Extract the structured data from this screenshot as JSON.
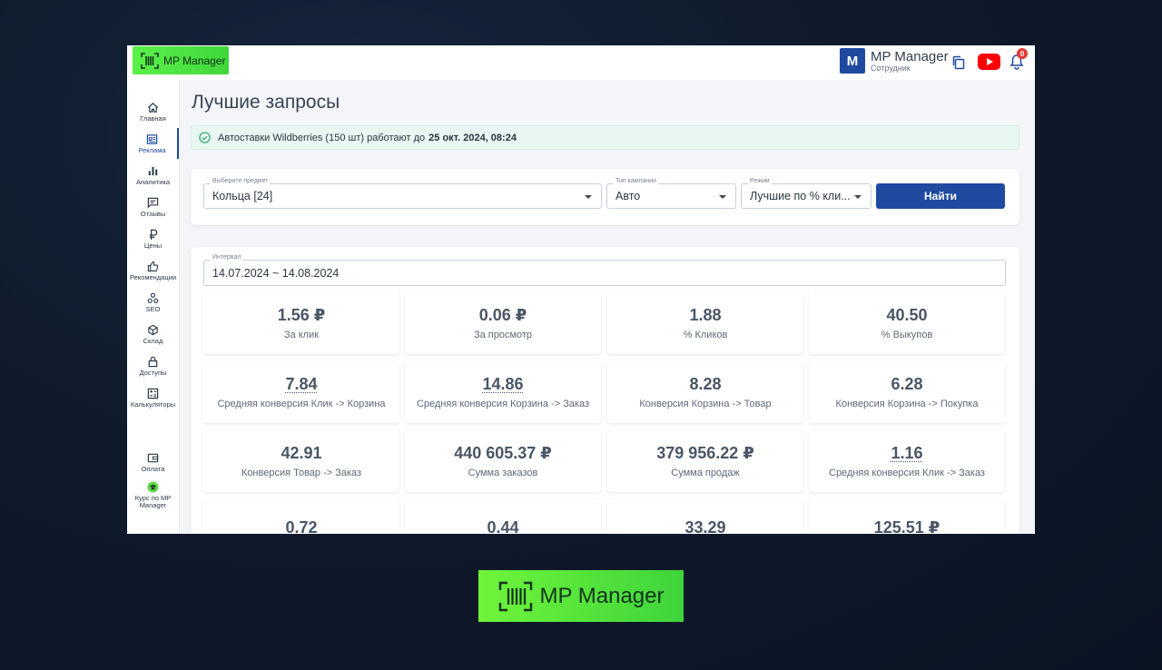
{
  "app": {
    "logo_text": "MP Manager",
    "brand_color": "#4ade3a"
  },
  "header": {
    "user_initial": "M",
    "user_name": "MP Manager",
    "user_role": "Сотрудник",
    "notifications_count": "0",
    "icons": [
      "copy-icon",
      "youtube-icon",
      "bell-icon"
    ]
  },
  "sidebar": {
    "items": [
      {
        "label": "Главная",
        "icon": "home-icon"
      },
      {
        "label": "Реклама",
        "icon": "ads-icon",
        "active": true
      },
      {
        "label": "Аналитика",
        "icon": "bar-chart-icon"
      },
      {
        "label": "Отзывы",
        "icon": "chat-icon"
      },
      {
        "label": "Цены",
        "icon": "ruble-icon"
      },
      {
        "label": "Рекомендации",
        "icon": "thumbs-up-icon"
      },
      {
        "label": "SEO",
        "icon": "seo-icon"
      },
      {
        "label": "Склад",
        "icon": "box-icon"
      },
      {
        "label": "Доступы",
        "icon": "lock-icon"
      },
      {
        "label": "Калькуляторы",
        "icon": "calculator-icon"
      },
      {
        "label": "Оплата",
        "icon": "wallet-icon"
      },
      {
        "label": "Курс по MP Manager",
        "icon": "course-icon"
      }
    ]
  },
  "main": {
    "title": "Лучшие запросы",
    "alert": {
      "text": "Автоставки Wildberries (150 шт) работают до",
      "bold": "25 окт. 2024, 08:24"
    },
    "filters": {
      "subject_label": "Выберите предмет",
      "subject_value": "Кольца [24]",
      "campaign_label": "Тип кампании",
      "campaign_value": "Авто",
      "mode_label": "Режим",
      "mode_value": "Лучшие по % кли...",
      "find_button": "Найти"
    },
    "interval": {
      "label": "Интервал",
      "value": "14.07.2024 ~ 14.08.2024"
    },
    "stats": [
      {
        "value": "1.56 ₽",
        "label": "За клик"
      },
      {
        "value": "0.06 ₽",
        "label": "За просмотр"
      },
      {
        "value": "1.88",
        "label": "% Кликов"
      },
      {
        "value": "40.50",
        "label": "% Выкупов"
      },
      {
        "value": "7.84",
        "label": "Средняя конверсия Клик -> Корзина",
        "dotted": true
      },
      {
        "value": "14.86",
        "label": "Средняя конверсия Корзина -> Заказ",
        "dotted": true
      },
      {
        "value": "8.28",
        "label": "Конверсия Корзина -> Товар"
      },
      {
        "value": "6.28",
        "label": "Конверсия Корзина -> Покупка"
      },
      {
        "value": "42.91",
        "label": "Конверсия Товар -> Заказ"
      },
      {
        "value": "440 605.37 ₽",
        "label": "Сумма заказов"
      },
      {
        "value": "379 956.22 ₽",
        "label": "Сумма продаж"
      },
      {
        "value": "1.16",
        "label": "Средняя конверсия Клик -> Заказ",
        "dotted": true
      },
      {
        "value": "0.72",
        "label": ""
      },
      {
        "value": "0.44",
        "label": ""
      },
      {
        "value": "33.29",
        "label": ""
      },
      {
        "value": "125.51 ₽",
        "label": ""
      }
    ]
  },
  "footer_logo": {
    "text": "MP Manager"
  }
}
